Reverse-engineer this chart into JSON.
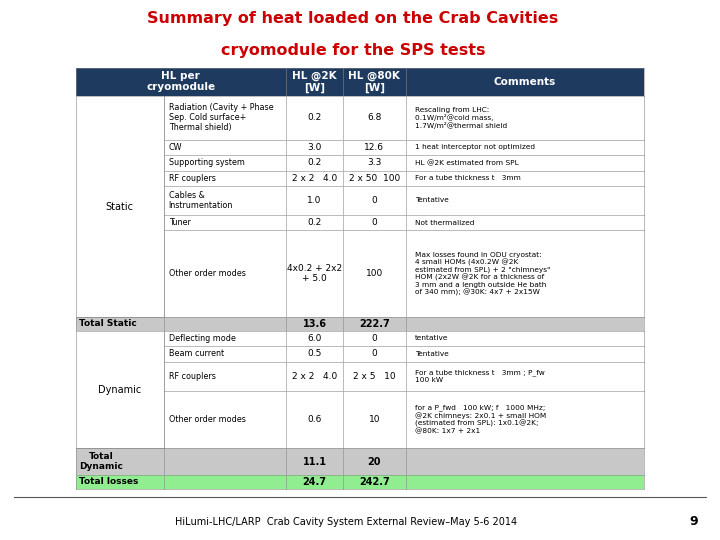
{
  "title_line1": "Summary of heat loaded on the Crab Cavities",
  "title_line2": "cryomodule for the SPS tests",
  "title_color": "#cc0000",
  "header_bg": "#1e3a5f",
  "header_fg": "#ffffff",
  "footer_text": "HiLumi-LHC/LARP  Crab Cavity System External Review–May 5-6 2014",
  "page_number": "9",
  "rows": [
    {
      "group": "Static",
      "item": "Radiation (Cavity + Phase\nSep. Cold surface+\nThermal shield)",
      "hl2k": "0.2",
      "hl80k": "6.8",
      "comment": "Rescaling from LHC:\n0.1W/m²@cold mass,\n1.7W/m²@thermal shield",
      "is_total": false,
      "bg": "#ffffff"
    },
    {
      "group": "",
      "item": "CW",
      "hl2k": "3.0",
      "hl80k": "12.6",
      "comment": "1 heat interceptor not optimized",
      "is_total": false,
      "bg": "#ffffff"
    },
    {
      "group": "",
      "item": "Supporting system",
      "hl2k": "0.2",
      "hl80k": "3.3",
      "comment": "HL @2K estimated from SPL",
      "is_total": false,
      "bg": "#ffffff"
    },
    {
      "group": "",
      "item": "RF couplers",
      "hl2k": "2 x 2   4.0",
      "hl80k": "2 x 50  100",
      "comment": "For a tube thickness t   3mm",
      "is_total": false,
      "bg": "#ffffff"
    },
    {
      "group": "",
      "item": "Cables &\nInstrumentation",
      "hl2k": "1.0",
      "hl80k": "0",
      "comment": "Tentative",
      "is_total": false,
      "bg": "#ffffff"
    },
    {
      "group": "",
      "item": "Tuner",
      "hl2k": "0.2",
      "hl80k": "0",
      "comment": "Not thermalized",
      "is_total": false,
      "bg": "#ffffff"
    },
    {
      "group": "",
      "item": "Other order modes",
      "hl2k": "4x0.2 + 2x2\n+ 5.0",
      "hl80k": "100",
      "comment": "Max losses found in ODU cryostat:\n4 small HOMs (4x0.2W @2K\nestimated from SPL) + 2 \"chimneys\"\nHOM (2x2W @2K for a thickness of\n3 mm and a length outside He bath\nof 340 mm); @30K: 4x7 + 2x15W",
      "is_total": false,
      "bg": "#ffffff"
    },
    {
      "group": "Total Static",
      "item": "",
      "hl2k": "13.6",
      "hl80k": "222.7",
      "comment": "",
      "is_total": true,
      "bg": "#c8c8c8"
    },
    {
      "group": "Dynamic",
      "item": "Deflecting mode",
      "hl2k": "6.0",
      "hl80k": "0",
      "comment": "tentative",
      "is_total": false,
      "bg": "#ffffff"
    },
    {
      "group": "",
      "item": "Beam current",
      "hl2k": "0.5",
      "hl80k": "0",
      "comment": "Tentative",
      "is_total": false,
      "bg": "#ffffff"
    },
    {
      "group": "",
      "item": "RF couplers",
      "hl2k": "2 x 2   4.0",
      "hl80k": "2 x 5   10",
      "comment": "For a tube thickness t   3mm ; P_fw\n100 kW",
      "is_total": false,
      "bg": "#ffffff"
    },
    {
      "group": "",
      "item": "Other order modes",
      "hl2k": "0.6",
      "hl80k": "10",
      "comment": "for a P_fwd   100 kW; f   1000 MHz;\n@2K chimneys: 2x0.1 + small HOM\n(estimated from SPL): 1x0.1@2K;\n@80K: 1x7 + 2x1",
      "is_total": false,
      "bg": "#ffffff"
    },
    {
      "group": "Total\nDynamic",
      "item": "",
      "hl2k": "11.1",
      "hl80k": "20",
      "comment": "",
      "is_total": true,
      "bg": "#c8c8c8"
    },
    {
      "group": "Total losses",
      "item": "",
      "hl2k": "24.7",
      "hl80k": "242.7",
      "comment": "",
      "is_total": true,
      "bg": "#90ee90"
    }
  ]
}
